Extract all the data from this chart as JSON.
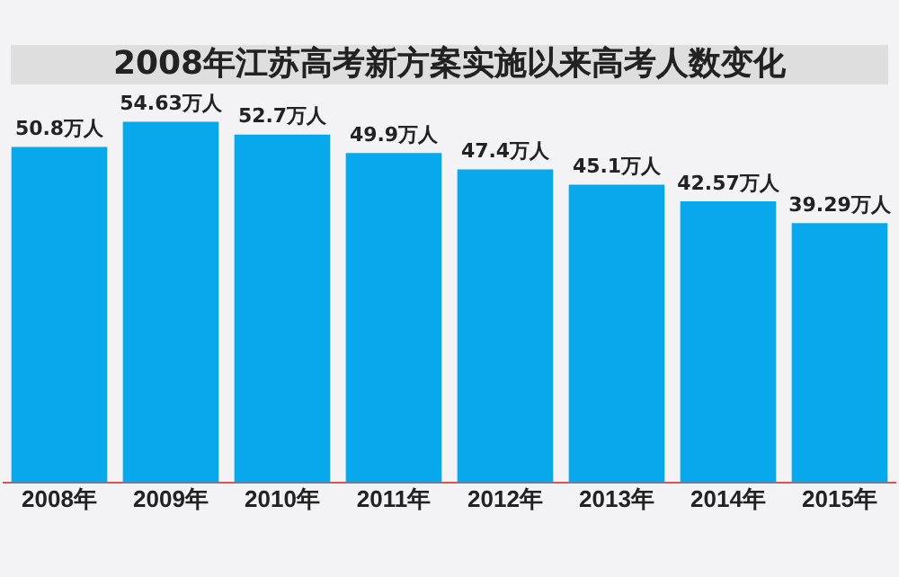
{
  "chart_data": {
    "type": "bar",
    "title": "2008年江苏高考新方案实施以来高考人数变化",
    "categories": [
      "2008年",
      "2009年",
      "2010年",
      "2011年",
      "2012年",
      "2013年",
      "2014年",
      "2015年"
    ],
    "values": [
      50.8,
      54.63,
      52.7,
      49.9,
      47.4,
      45.1,
      42.57,
      39.29
    ],
    "value_labels": [
      "50.8万人",
      "54.63万人",
      "52.7万人",
      "49.9万人",
      "47.4万人",
      "45.1万人",
      "42.57万人",
      "39.29万人"
    ],
    "color": "#08a8ec",
    "tick_labels": "x",
    "grid": false,
    "legend": false
  }
}
